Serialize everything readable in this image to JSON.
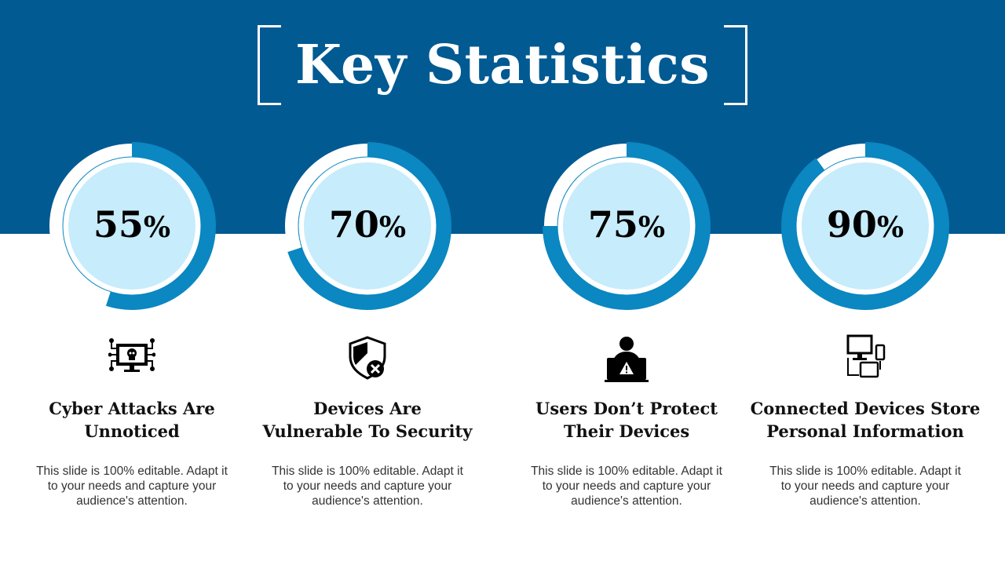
{
  "title": "Key Statistics",
  "colors": {
    "header_band": "#015a92",
    "ring_blue": "#0b87c1",
    "inner_fill": "#c7ecfb",
    "text": "#000000"
  },
  "stats": [
    {
      "value": 55,
      "percent_label": "55",
      "icon": "hacked-monitor-skull-icon",
      "heading_line1": "Cyber Attacks Are",
      "heading_line2": "Unnoticed",
      "desc_line1": "This slide is 100% editable. Adapt it",
      "desc_line2": "to your needs and capture your",
      "desc_line3": "audience's attention."
    },
    {
      "value": 70,
      "percent_label": "70",
      "icon": "shield-cross-icon",
      "heading_line1": "Devices Are",
      "heading_line2": "Vulnerable To Security",
      "desc_line1": "This slide is 100% editable. Adapt it",
      "desc_line2": "to your needs and capture your",
      "desc_line3": "audience's attention."
    },
    {
      "value": 75,
      "percent_label": "75",
      "icon": "user-laptop-warning-icon",
      "heading_line1": "Users Don’t Protect",
      "heading_line2": "Their Devices",
      "desc_line1": "This slide is 100% editable. Adapt it",
      "desc_line2": "to your needs and capture your",
      "desc_line3": "audience's attention."
    },
    {
      "value": 90,
      "percent_label": "90",
      "icon": "connected-devices-icon",
      "heading_line1": "Connected Devices Store",
      "heading_line2": "Personal Information",
      "desc_line1": "This slide is 100% editable. Adapt it",
      "desc_line2": "to your needs and capture your",
      "desc_line3": "audience's attention."
    }
  ],
  "percent_sign": "%"
}
